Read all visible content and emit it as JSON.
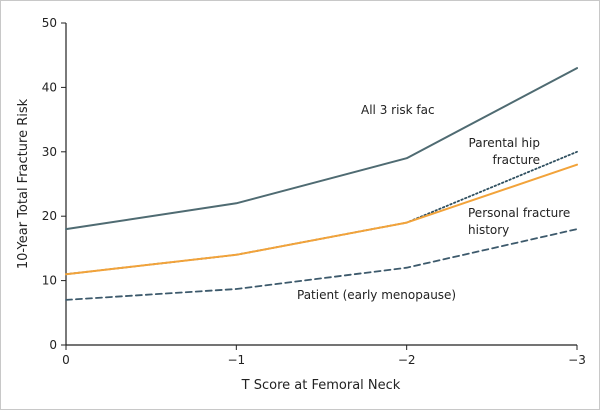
{
  "chart_data": {
    "type": "line",
    "xlabel": "T Score at Femoral Neck",
    "ylabel": "10-Year Total Fracture Risk",
    "xlim": [
      0,
      -3
    ],
    "ylim": [
      0,
      50
    ],
    "x_ticks": [
      "0",
      "−1",
      "−2",
      "−3"
    ],
    "y_ticks": [
      "0",
      "10",
      "20",
      "30",
      "40",
      "50"
    ],
    "grid": false,
    "legend": "none",
    "x": [
      0,
      -1,
      -2,
      -3
    ],
    "series": [
      {
        "key": "all3",
        "values": [
          18,
          22,
          29,
          43
        ],
        "color": "#4f6b72",
        "dash": "solid"
      },
      {
        "key": "parental",
        "values": [
          11,
          14,
          19,
          30
        ],
        "color": "#2f4f5f",
        "dash": "dotted"
      },
      {
        "key": "personal",
        "values": [
          11,
          14,
          19,
          28
        ],
        "color": "#f2a33a",
        "dash": "solid"
      },
      {
        "key": "patient",
        "values": [
          7,
          8.7,
          12,
          18
        ],
        "color": "#3d5a6c",
        "dash": "dashed"
      }
    ],
    "annotations": {
      "all3": "All 3 risk fac",
      "parental_1": "Parental hip",
      "parental_2": "fracture",
      "personal_1": "Personal fracture",
      "personal_2": "history",
      "patient": "Patient (early menopause)"
    }
  }
}
